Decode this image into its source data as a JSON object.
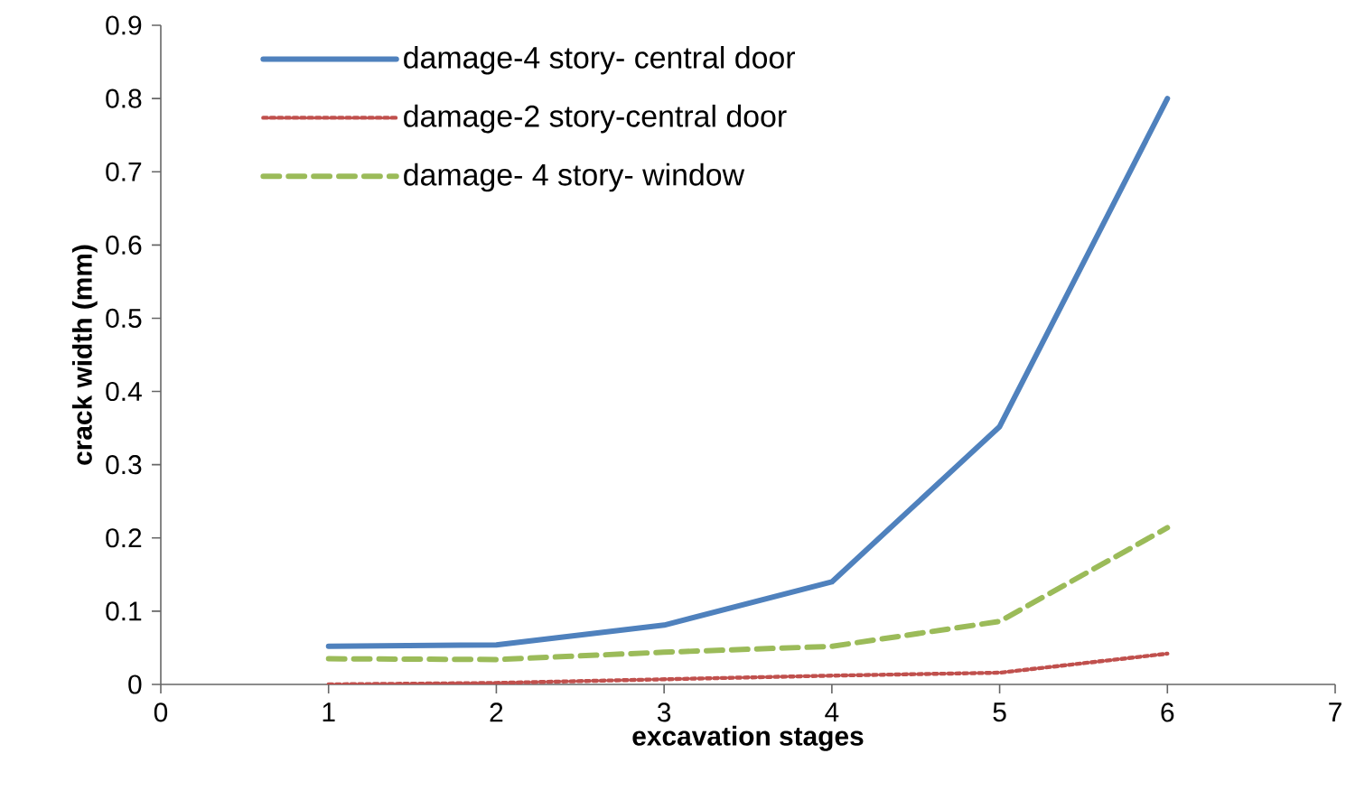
{
  "chart_data": {
    "type": "line",
    "xlabel": "excavation stages",
    "ylabel": "crack width (mm)",
    "x": [
      1,
      2,
      3,
      4,
      5,
      6
    ],
    "series": [
      {
        "name": "damage-4 story- central door",
        "color": "#4f81bd",
        "line_style": "solid",
        "values": [
          0.052,
          0.054,
          0.081,
          0.14,
          0.352,
          0.8
        ]
      },
      {
        "name": "damage-2 story-central door",
        "color": "#c0504d",
        "line_style": "dotted",
        "values": [
          0,
          0.002,
          0.007,
          0.012,
          0.016,
          0.042
        ]
      },
      {
        "name": "damage- 4 story- window",
        "color": "#9bbb59",
        "line_style": "dashed",
        "values": [
          0.035,
          0.034,
          0.044,
          0.052,
          0.086,
          0.214
        ]
      }
    ],
    "xlim": [
      0,
      7
    ],
    "xticks": [
      0,
      1,
      2,
      3,
      4,
      5,
      6,
      7
    ],
    "ylim": [
      0,
      0.9
    ],
    "yticks": [
      0,
      0.1,
      0.2,
      0.3,
      0.4,
      0.5,
      0.6,
      0.7,
      0.8,
      0.9
    ],
    "legend": "top left",
    "marker": "none",
    "grid": false
  }
}
